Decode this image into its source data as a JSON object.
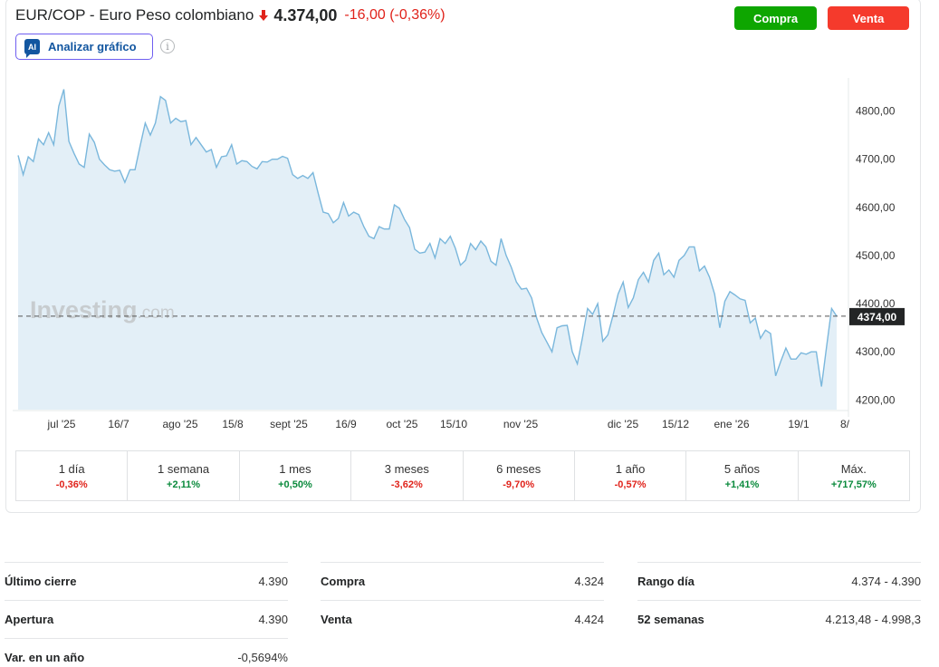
{
  "header": {
    "title": "EUR/COP - Euro Peso colombiano",
    "price": "4.374,00",
    "change": "-16,00",
    "change_pct": "(-0,36%)",
    "buy_label": "Compra",
    "sell_label": "Venta",
    "analyze_label": "Analizar gráfico",
    "ai_badge": "AI",
    "info_glyph": "i"
  },
  "colors": {
    "down": "#e0231b",
    "up": "#0a8a3c",
    "buy": "#0ea600",
    "sell": "#f53a2c",
    "line": "#7ab7dc",
    "area": "#e3eff7"
  },
  "chart_data": {
    "type": "area",
    "ylim": [
      4180,
      4880
    ],
    "y_ticks": [
      "4800,00",
      "4700,00",
      "4600,00",
      "4500,00",
      "4400,00",
      "4300,00",
      "4200,00"
    ],
    "y_tick_values": [
      4800,
      4700,
      4600,
      4500,
      4400,
      4300,
      4200
    ],
    "x_ticks": [
      "jul '25",
      "16/7",
      "ago '25",
      "15/8",
      "sept '25",
      "16/9",
      "oct '25",
      "15/10",
      "nov '25",
      "dic '25",
      "15/12",
      "ene '26",
      "19/1",
      "8/"
    ],
    "current_value": 4374,
    "current_label": "4374,00",
    "watermark": "Investing",
    "watermark_suffix": ".com",
    "values": [
      4708,
      4668,
      4705,
      4695,
      4742,
      4730,
      4755,
      4730,
      4810,
      4845,
      4737,
      4712,
      4690,
      4683,
      4752,
      4735,
      4700,
      4688,
      4678,
      4675,
      4677,
      4652,
      4678,
      4678,
      4728,
      4775,
      4750,
      4775,
      4830,
      4822,
      4775,
      4785,
      4778,
      4780,
      4730,
      4745,
      4730,
      4715,
      4720,
      4683,
      4705,
      4707,
      4730,
      4690,
      4697,
      4695,
      4685,
      4680,
      4695,
      4694,
      4700,
      4700,
      4706,
      4702,
      4668,
      4660,
      4666,
      4660,
      4672,
      4630,
      4590,
      4587,
      4568,
      4577,
      4610,
      4582,
      4590,
      4585,
      4560,
      4540,
      4535,
      4560,
      4555,
      4555,
      4605,
      4598,
      4575,
      4558,
      4513,
      4505,
      4507,
      4525,
      4495,
      4535,
      4525,
      4540,
      4515,
      4480,
      4490,
      4525,
      4512,
      4530,
      4518,
      4488,
      4480,
      4535,
      4500,
      4476,
      4445,
      4430,
      4432,
      4412,
      4370,
      4340,
      4320,
      4300,
      4350,
      4354,
      4355,
      4300,
      4275,
      4330,
      4390,
      4378,
      4400,
      4322,
      4335,
      4375,
      4420,
      4445,
      4392,
      4412,
      4450,
      4465,
      4445,
      4490,
      4505,
      4460,
      4470,
      4455,
      4490,
      4500,
      4518,
      4518,
      4468,
      4478,
      4455,
      4420,
      4350,
      4405,
      4425,
      4418,
      4410,
      4407,
      4360,
      4370,
      4328,
      4345,
      4338,
      4250,
      4280,
      4308,
      4285,
      4285,
      4298,
      4295,
      4300,
      4300,
      4228,
      4310,
      4390,
      4374
    ]
  },
  "periods": [
    {
      "label": "1 día",
      "value": "-0,36%",
      "dir": "neg"
    },
    {
      "label": "1 semana",
      "value": "+2,11%",
      "dir": "pos"
    },
    {
      "label": "1 mes",
      "value": "+0,50%",
      "dir": "pos"
    },
    {
      "label": "3 meses",
      "value": "-3,62%",
      "dir": "neg"
    },
    {
      "label": "6 meses",
      "value": "-9,70%",
      "dir": "neg"
    },
    {
      "label": "1 año",
      "value": "-0,57%",
      "dir": "neg"
    },
    {
      "label": "5 años",
      "value": "+1,41%",
      "dir": "pos"
    },
    {
      "label": "Máx.",
      "value": "+717,57%",
      "dir": "pos"
    }
  ],
  "stats": {
    "col1": [
      {
        "label": "Último cierre",
        "value": "4.390"
      },
      {
        "label": "Apertura",
        "value": "4.390"
      },
      {
        "label": "Var. en un año",
        "value": "-0,5694%"
      }
    ],
    "col2": [
      {
        "label": "Compra",
        "value": "4.324"
      },
      {
        "label": "Venta",
        "value": "4.424"
      }
    ],
    "col3": [
      {
        "label": "Rango día",
        "value": "4.374 - 4.390"
      },
      {
        "label": "52 semanas",
        "value": "4.213,48 - 4.998,3"
      }
    ]
  }
}
